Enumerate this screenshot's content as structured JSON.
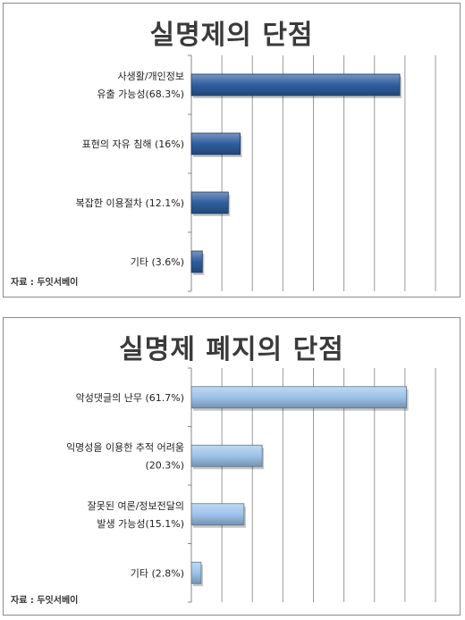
{
  "chart_data": [
    {
      "type": "bar",
      "orientation": "horizontal",
      "title": "실명제의 단점",
      "source": "자료 : 두잇서베이",
      "categories": [
        [
          "사생활/개인정보",
          "유출 가능성(68.3%)"
        ],
        [
          "표현의 자유 침해 (16%)"
        ],
        [
          "복잡한 이용절차 (12.1%)"
        ],
        [
          "기타 (3.6%)"
        ]
      ],
      "values": [
        68.3,
        16,
        12.1,
        3.6
      ],
      "xlim": [
        0,
        80
      ],
      "grid": true,
      "bar_color": "#2e5e9e"
    },
    {
      "type": "bar",
      "orientation": "horizontal",
      "title": "실명제 폐지의 단점",
      "source": "자료 : 두잇서베이",
      "categories": [
        [
          "악성댓글의 난무 (61.7%)"
        ],
        [
          "익명성을 이용한 추적 어려움",
          "(20.3%)"
        ],
        [
          "잘못된 여론/정보전달의",
          "발생 가능성(15.1%)"
        ],
        [
          "기타 (2.8%)"
        ]
      ],
      "values": [
        61.7,
        20.3,
        15.1,
        2.8
      ],
      "xlim": [
        0,
        70
      ],
      "grid": true,
      "bar_color": "#9dc3ea"
    }
  ]
}
